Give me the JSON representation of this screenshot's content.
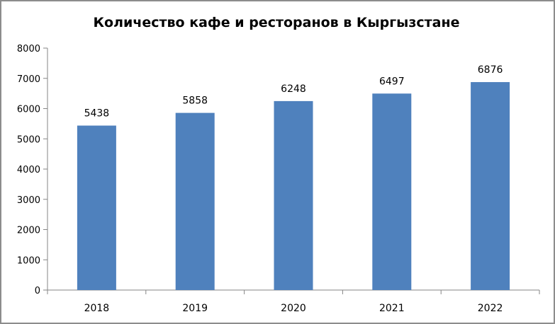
{
  "chart_data": {
    "type": "bar",
    "title": "Количество кафе и ресторанов в Кыргызстане",
    "xlabel": "",
    "ylabel": "",
    "categories": [
      "2018",
      "2019",
      "2020",
      "2021",
      "2022"
    ],
    "values": [
      5438,
      5858,
      6248,
      6497,
      6876
    ],
    "data_labels": [
      "5438",
      "5858",
      "6248",
      "6497",
      "6876"
    ],
    "ylim": [
      0,
      8000
    ],
    "yticks": [
      0,
      1000,
      2000,
      3000,
      4000,
      5000,
      6000,
      7000,
      8000
    ],
    "ytick_labels": [
      "0",
      "1000",
      "2000",
      "3000",
      "4000",
      "5000",
      "6000",
      "7000",
      "8000"
    ],
    "grid": false,
    "legend": "none",
    "bar_color": "#4f81bd"
  }
}
